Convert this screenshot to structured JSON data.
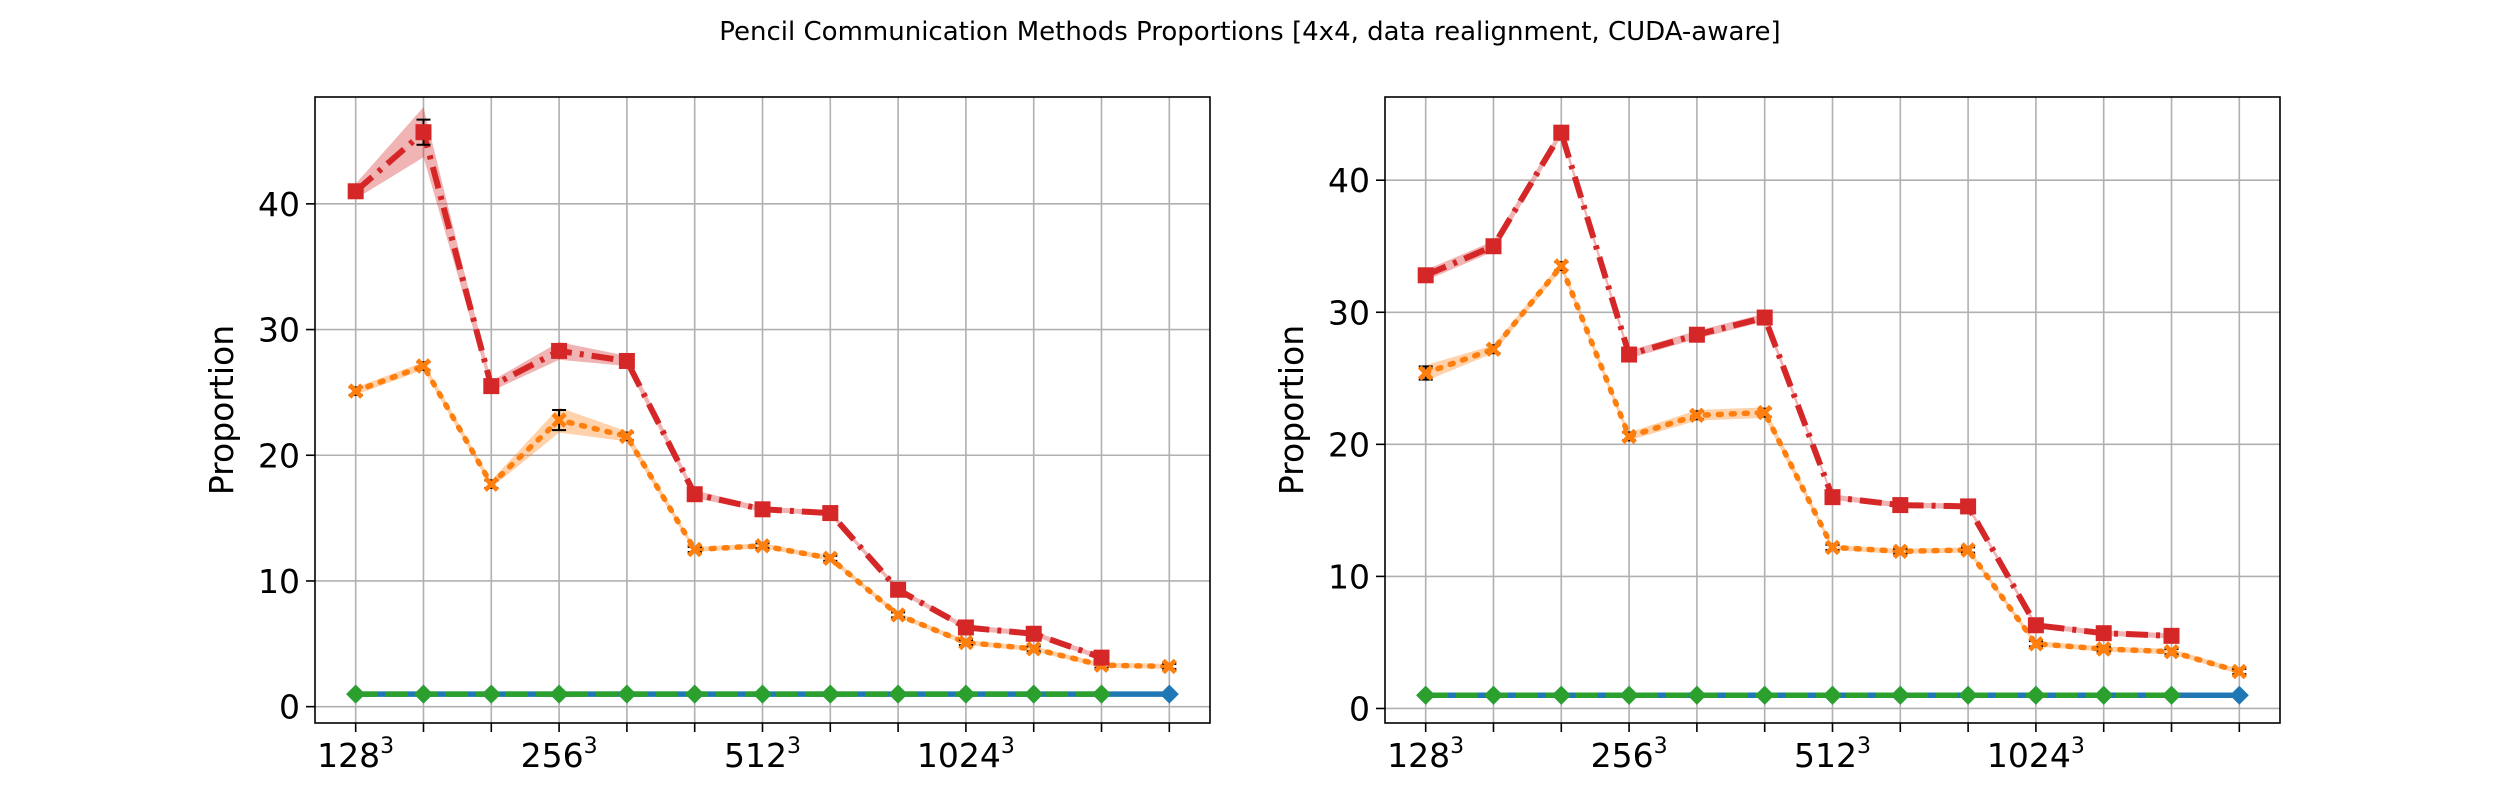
{
  "figure": {
    "title": "Pencil Communication Methods Proportions [4x4, data realignment, CUDA-aware]"
  },
  "chart_data": [
    {
      "type": "line",
      "ylabel": "Proportion",
      "xlim": [
        -0.6,
        12.6
      ],
      "ylim": [
        -1.3,
        48.5
      ],
      "yticks": [
        0,
        10,
        20,
        30,
        40
      ],
      "grid": true,
      "x_positions": [
        0,
        1,
        2,
        3,
        4,
        5,
        6,
        7,
        8,
        9,
        10,
        11,
        12
      ],
      "xtick_labels": [
        {
          "pos": 0,
          "base": "128",
          "exp": "3"
        },
        {
          "pos": 3,
          "base": "256",
          "exp": "3"
        },
        {
          "pos": 6,
          "base": "512",
          "exp": "3"
        },
        {
          "pos": 9,
          "base": "1024",
          "exp": "3"
        }
      ],
      "series": [
        {
          "color": "#d62728",
          "style": "dashdot",
          "marker": "square",
          "values": [
            41.0,
            45.7,
            25.5,
            28.3,
            27.5,
            16.9,
            15.7,
            15.4,
            9.3,
            6.3,
            5.8,
            3.9,
            null
          ],
          "err": [
            0.5,
            1.0,
            0.3,
            0.5,
            0.3,
            0.2,
            0.2,
            0.2,
            0.2,
            0.2,
            0.2,
            0.2,
            null
          ],
          "band": [
            0.6,
            2.0,
            0.4,
            0.7,
            0.4,
            0.3,
            0.2,
            0.2,
            0.2,
            0.2,
            0.2,
            0.2,
            null
          ]
        },
        {
          "color": "#ff7f0e",
          "style": "dotted",
          "marker": "x",
          "values": [
            25.1,
            27.1,
            17.7,
            22.8,
            21.5,
            12.5,
            12.8,
            11.8,
            7.3,
            5.1,
            4.6,
            3.3,
            3.2
          ],
          "err": [
            0.3,
            0.3,
            0.3,
            0.8,
            0.3,
            0.2,
            0.2,
            0.2,
            0.2,
            0.2,
            0.2,
            0.2,
            0.2
          ],
          "band": [
            0.3,
            0.3,
            0.3,
            1.0,
            0.4,
            0.2,
            0.2,
            0.2,
            0.2,
            0.2,
            0.2,
            0.2,
            0.2
          ]
        },
        {
          "color": "#1f77b4",
          "style": "solid",
          "marker": "diamond",
          "values": [
            1.0,
            1.0,
            1.0,
            1.0,
            1.0,
            1.0,
            1.0,
            1.0,
            1.0,
            1.0,
            1.0,
            1.0,
            1.0
          ],
          "err": [
            0,
            0,
            0,
            0,
            0,
            0,
            0,
            0,
            0,
            0,
            0,
            0,
            0
          ],
          "band": [
            0,
            0,
            0,
            0,
            0,
            0,
            0,
            0,
            0,
            0,
            0,
            0,
            0
          ]
        },
        {
          "color": "#2ca02c",
          "style": "dashed",
          "marker": "diamond",
          "values": [
            1.0,
            1.0,
            1.0,
            1.0,
            1.0,
            1.0,
            1.0,
            1.0,
            1.0,
            1.0,
            1.0,
            1.0,
            null
          ],
          "err": [
            0,
            0,
            0,
            0,
            0,
            0,
            0,
            0,
            0,
            0,
            0,
            0,
            null
          ],
          "band": [
            0,
            0,
            0,
            0,
            0,
            0,
            0,
            0,
            0,
            0,
            0,
            0,
            null
          ]
        }
      ]
    },
    {
      "type": "line",
      "ylabel": "Proportion",
      "xlim": [
        -0.6,
        12.6
      ],
      "ylim": [
        -1.1,
        46.3
      ],
      "yticks": [
        0,
        10,
        20,
        30,
        40
      ],
      "grid": true,
      "x_positions": [
        0,
        1,
        2,
        3,
        4,
        5,
        6,
        7,
        8,
        9,
        10,
        11,
        12
      ],
      "xtick_labels": [
        {
          "pos": 0,
          "base": "128",
          "exp": "3"
        },
        {
          "pos": 3,
          "base": "256",
          "exp": "3"
        },
        {
          "pos": 6,
          "base": "512",
          "exp": "3"
        },
        {
          "pos": 9,
          "base": "1024",
          "exp": "3"
        }
      ],
      "series": [
        {
          "color": "#d62728",
          "style": "dashdot",
          "marker": "square",
          "values": [
            32.8,
            35.0,
            43.6,
            26.8,
            28.3,
            29.6,
            16.0,
            15.4,
            15.3,
            6.3,
            5.7,
            5.5,
            null
          ],
          "err": [
            0.3,
            0.3,
            0.3,
            0.3,
            0.3,
            0.3,
            0.2,
            0.2,
            0.2,
            0.2,
            0.2,
            0.2,
            null
          ],
          "band": [
            0.4,
            0.4,
            0.3,
            0.3,
            0.3,
            0.3,
            0.2,
            0.2,
            0.2,
            0.2,
            0.2,
            0.2,
            null
          ]
        },
        {
          "color": "#ff7f0e",
          "style": "dotted",
          "marker": "x",
          "values": [
            25.4,
            27.2,
            33.5,
            20.6,
            22.2,
            22.4,
            12.2,
            11.9,
            12.0,
            4.9,
            4.5,
            4.3,
            2.8
          ],
          "err": [
            0.5,
            0.3,
            0.3,
            0.3,
            0.3,
            0.3,
            0.2,
            0.2,
            0.2,
            0.2,
            0.2,
            0.2,
            0.2
          ],
          "band": [
            0.6,
            0.3,
            0.3,
            0.3,
            0.4,
            0.4,
            0.2,
            0.2,
            0.2,
            0.2,
            0.2,
            0.2,
            0.2
          ]
        },
        {
          "color": "#1f77b4",
          "style": "solid",
          "marker": "diamond",
          "values": [
            1.0,
            1.0,
            1.0,
            1.0,
            1.0,
            1.0,
            1.0,
            1.0,
            1.0,
            1.0,
            1.0,
            1.0,
            1.0
          ],
          "err": [
            0,
            0,
            0,
            0,
            0,
            0,
            0,
            0,
            0,
            0,
            0,
            0,
            0
          ],
          "band": [
            0,
            0,
            0,
            0,
            0,
            0,
            0,
            0,
            0,
            0,
            0,
            0,
            0
          ]
        },
        {
          "color": "#2ca02c",
          "style": "dashed",
          "marker": "diamond",
          "values": [
            1.0,
            1.0,
            1.0,
            1.0,
            1.0,
            1.0,
            1.0,
            1.0,
            1.0,
            1.0,
            1.0,
            1.0,
            null
          ],
          "err": [
            0,
            0,
            0,
            0,
            0,
            0,
            0,
            0,
            0,
            0,
            0,
            0,
            null
          ],
          "band": [
            0,
            0,
            0,
            0,
            0,
            0,
            0,
            0,
            0,
            0,
            0,
            0,
            null
          ]
        }
      ]
    }
  ]
}
